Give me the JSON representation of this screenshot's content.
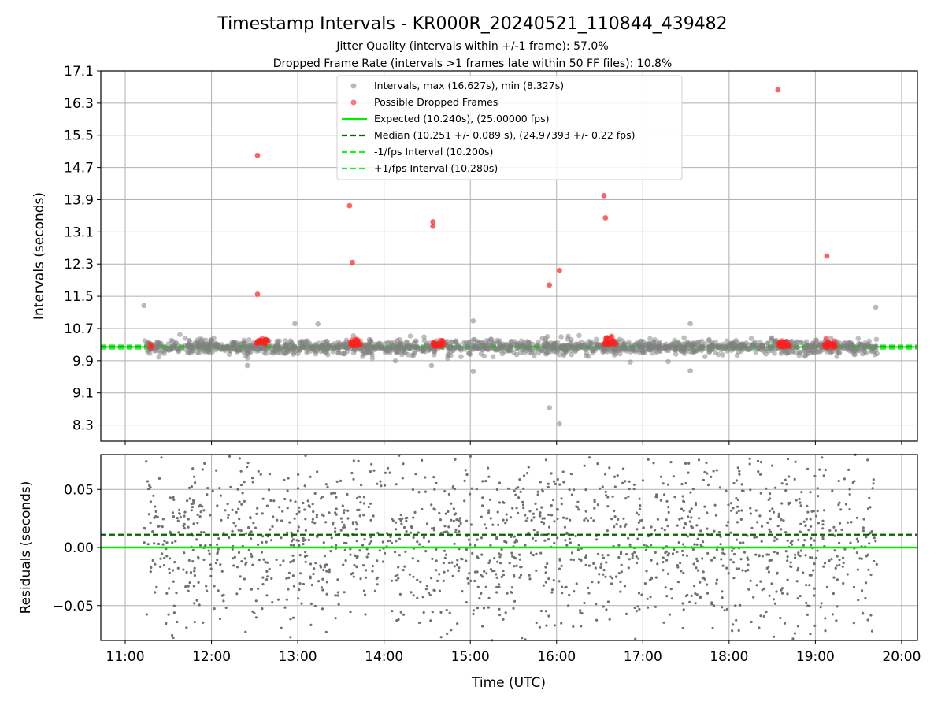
{
  "chart_data": [
    {
      "type": "scatter",
      "title": "Timestamp Intervals - KR000R_20240521_110844_439482",
      "subtitle_lines": [
        "Jitter Quality (intervals within +/-1 frame): 57.0%",
        "Dropped Frame Rate (intervals >1 frames late within 50 FF files): 10.8%"
      ],
      "ylabel": "Intervals (seconds)",
      "ylim": [
        7.9,
        17.1
      ],
      "yticks": [
        8.3,
        9.1,
        9.9,
        10.7,
        11.5,
        12.3,
        13.1,
        13.9,
        14.7,
        15.5,
        16.3,
        17.1
      ],
      "xlim": [
        "10:43",
        "20:11"
      ],
      "xticks": [
        "11:00",
        "12:00",
        "13:00",
        "14:00",
        "15:00",
        "16:00",
        "17:00",
        "18:00",
        "19:00",
        "20:00"
      ],
      "grid": true,
      "legend_position": "top-center",
      "legend": [
        "Intervals, max (16.627s), min (8.327s)",
        "Possible Dropped Frames",
        "Expected (10.240s), (25.00000 fps)",
        "Median (10.251 +/- 0.089 s), (24.97393 +/- 0.22 fps)",
        "-1/fps Interval (10.200s)",
        "+1/fps Interval (10.280s)"
      ],
      "reference_lines": {
        "expected": 10.24,
        "median": 10.251,
        "minus_one_fps": 10.2,
        "plus_one_fps": 10.28
      },
      "series": [
        {
          "name": "Intervals, max (16.627s), min (8.327s)",
          "color": "#808080",
          "distribution": {
            "start": "11:13",
            "end": "19:43",
            "center": 10.24,
            "typical_spread": 0.1
          },
          "notable_points": [
            {
              "x": "11:13",
              "y": 11.27
            },
            {
              "x": "19:42",
              "y": 11.23
            },
            {
              "x": "15:02",
              "y": 10.89
            },
            {
              "x": "15:02",
              "y": 9.63
            },
            {
              "x": "15:55",
              "y": 8.73
            },
            {
              "x": "16:02",
              "y": 8.33
            },
            {
              "x": "17:33",
              "y": 10.82
            },
            {
              "x": "17:33",
              "y": 9.65
            },
            {
              "x": "12:58",
              "y": 10.82
            },
            {
              "x": "13:14",
              "y": 10.81
            },
            {
              "x": "14:33",
              "y": 9.78
            },
            {
              "x": "12:25",
              "y": 9.78
            }
          ]
        },
        {
          "name": "Possible Dropped Frames",
          "color": "#ff2020",
          "clusters": [
            {
              "x": "11:18",
              "y": 10.24
            },
            {
              "x": "12:35",
              "y": 10.34
            },
            {
              "x": "13:40",
              "y": 10.3
            },
            {
              "x": "14:38",
              "y": 10.28
            },
            {
              "x": "16:37",
              "y": 10.34
            },
            {
              "x": "18:38",
              "y": 10.28
            },
            {
              "x": "19:10",
              "y": 10.26
            }
          ],
          "outliers": [
            {
              "x": "12:32",
              "y": 15.0
            },
            {
              "x": "12:32",
              "y": 11.55
            },
            {
              "x": "13:36",
              "y": 13.75
            },
            {
              "x": "13:38",
              "y": 12.34
            },
            {
              "x": "14:34",
              "y": 13.35
            },
            {
              "x": "14:34",
              "y": 13.24
            },
            {
              "x": "15:55",
              "y": 11.78
            },
            {
              "x": "16:02",
              "y": 12.14
            },
            {
              "x": "16:33",
              "y": 14.0
            },
            {
              "x": "16:34",
              "y": 13.45
            },
            {
              "x": "18:34",
              "y": 16.63
            },
            {
              "x": "19:08",
              "y": 12.5
            }
          ]
        }
      ]
    },
    {
      "type": "scatter",
      "xlabel": "Time (UTC)",
      "ylabel": "Residuals (seconds)",
      "ylim": [
        -0.08,
        0.08
      ],
      "yticks": [
        -0.05,
        0.0,
        0.05
      ],
      "ytick_labels": [
        "−0.05",
        "0.00",
        "0.05"
      ],
      "xlim": [
        "10:43",
        "20:11"
      ],
      "xticks": [
        "11:00",
        "12:00",
        "13:00",
        "14:00",
        "15:00",
        "16:00",
        "17:00",
        "18:00",
        "19:00",
        "20:00"
      ],
      "grid": true,
      "reference_lines": {
        "zero": 0.0,
        "median_offset": 0.011
      },
      "series": [
        {
          "name": "Residuals",
          "color": "#707070",
          "distribution": {
            "start": "11:13",
            "end": "19:43",
            "center": 0.005,
            "spread": 0.04
          }
        }
      ]
    }
  ],
  "colors": {
    "intervals": "#808080",
    "dropped": "#ff2020",
    "expected": "#00ee00",
    "median": "#006400",
    "fps_bounds": "#22ee22",
    "grid": "#b0b0b0",
    "residuals": "#707070"
  }
}
